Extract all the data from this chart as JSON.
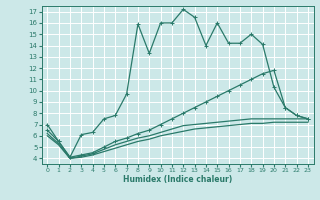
{
  "xlabel": "Humidex (Indice chaleur)",
  "xlim": [
    -0.5,
    23.5
  ],
  "ylim": [
    3.5,
    17.5
  ],
  "xticks": [
    0,
    1,
    2,
    3,
    4,
    5,
    6,
    7,
    8,
    9,
    10,
    11,
    12,
    13,
    14,
    15,
    16,
    17,
    18,
    19,
    20,
    21,
    22,
    23
  ],
  "yticks": [
    4,
    5,
    6,
    7,
    8,
    9,
    10,
    11,
    12,
    13,
    14,
    15,
    16,
    17
  ],
  "bg_color": "#cce8e8",
  "grid_color": "#b0d8d8",
  "line_color": "#2a7a6a",
  "line1_x": [
    0,
    1,
    2,
    3,
    4,
    5,
    6,
    7,
    8,
    9,
    10,
    11,
    12,
    13,
    14,
    15,
    16,
    17,
    18,
    19,
    20,
    21,
    22,
    23
  ],
  "line1_y": [
    7.0,
    5.5,
    4.1,
    6.1,
    6.3,
    7.5,
    7.8,
    9.7,
    15.9,
    13.3,
    16.0,
    16.0,
    17.2,
    16.5,
    14.0,
    16.0,
    14.2,
    14.2,
    15.0,
    14.1,
    10.3,
    8.5,
    7.8,
    7.5
  ],
  "line2_x": [
    0,
    1,
    2,
    3,
    4,
    5,
    6,
    7,
    8,
    9,
    10,
    11,
    12,
    13,
    14,
    15,
    16,
    17,
    18,
    19,
    20,
    21,
    22,
    23
  ],
  "line2_y": [
    6.5,
    5.5,
    4.1,
    4.3,
    4.5,
    5.0,
    5.5,
    5.8,
    6.2,
    6.5,
    7.0,
    7.5,
    8.0,
    8.5,
    9.0,
    9.5,
    10.0,
    10.5,
    11.0,
    11.5,
    11.8,
    8.5,
    7.8,
    7.5
  ],
  "line3_x": [
    0,
    1,
    2,
    3,
    4,
    5,
    6,
    7,
    8,
    9,
    10,
    11,
    12,
    13,
    14,
    15,
    16,
    17,
    18,
    19,
    20,
    21,
    22,
    23
  ],
  "line3_y": [
    6.2,
    5.3,
    4.0,
    4.2,
    4.4,
    4.8,
    5.2,
    5.5,
    5.8,
    6.0,
    6.3,
    6.6,
    6.9,
    7.0,
    7.1,
    7.2,
    7.3,
    7.4,
    7.5,
    7.5,
    7.5,
    7.5,
    7.5,
    7.5
  ],
  "line4_x": [
    0,
    1,
    2,
    3,
    4,
    5,
    6,
    7,
    8,
    9,
    10,
    11,
    12,
    13,
    14,
    15,
    16,
    17,
    18,
    19,
    20,
    21,
    22,
    23
  ],
  "line4_y": [
    6.0,
    5.2,
    4.0,
    4.1,
    4.3,
    4.6,
    4.9,
    5.2,
    5.5,
    5.7,
    6.0,
    6.2,
    6.4,
    6.6,
    6.7,
    6.8,
    6.9,
    7.0,
    7.1,
    7.1,
    7.2,
    7.2,
    7.2,
    7.2
  ]
}
